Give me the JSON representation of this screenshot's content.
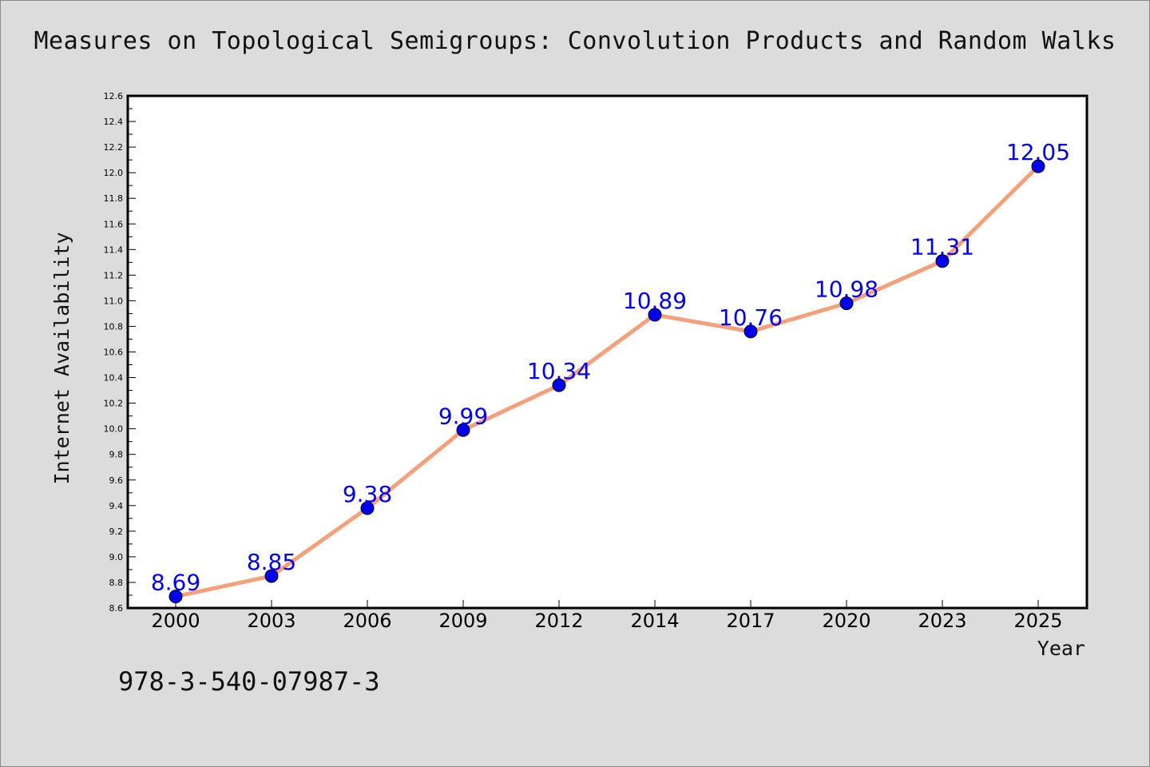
{
  "title": "Measures on Topological Semigroups: Convolution Products and Random Walks",
  "isbn": "978-3-540-07987-3",
  "colors": {
    "line": "#f4a07a",
    "marker": "#0000ee",
    "label": "#0000ee",
    "plot_bg": "#ffffff",
    "page_bg": "#dcdcdc"
  },
  "chart_data": {
    "type": "line",
    "title": "Measures on Topological Semigroups: Convolution Products and Random Walks",
    "xlabel": "Year",
    "ylabel": "Internet Availability",
    "categories": [
      "2000",
      "2003",
      "2006",
      "2009",
      "2012",
      "2014",
      "2017",
      "2020",
      "2023",
      "2025"
    ],
    "series": [
      {
        "values": [
          8.69,
          8.85,
          9.38,
          9.99,
          10.34,
          10.89,
          10.76,
          10.98,
          11.31,
          12.05
        ]
      }
    ],
    "data_labels": [
      "8.69",
      "8.85",
      "9.38",
      "9.99",
      "10.34",
      "10.89",
      "10.76",
      "10.98",
      "11.31",
      "12.05"
    ],
    "ylim": [
      8.6,
      12.6
    ],
    "yticks": [
      "8.6",
      "8.8",
      "9.0",
      "9.2",
      "9.4",
      "9.6",
      "9.8",
      "10.0",
      "10.2",
      "10.4",
      "10.6",
      "10.8",
      "11.0",
      "11.2",
      "11.4",
      "11.6",
      "11.8",
      "12.0",
      "12.2",
      "12.4",
      "12.6"
    ],
    "grid": false,
    "legend": "none"
  }
}
